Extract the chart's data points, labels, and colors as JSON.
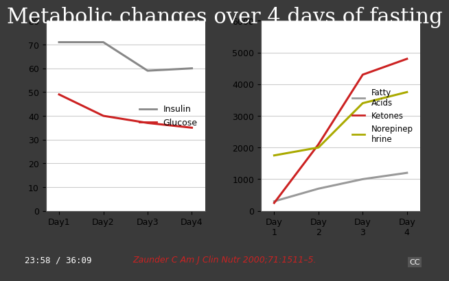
{
  "title": "Metabolic changes over 4 days of fasting",
  "title_fontsize": 22,
  "title_fontfamily": "serif",
  "background_color": "#3a3a3a",
  "chart_bg": "#ffffff",
  "left": {
    "x_labels": [
      "Day1",
      "Day2",
      "Day3",
      "Day4"
    ],
    "x": [
      1,
      2,
      3,
      4
    ],
    "insulin": [
      71,
      71,
      59,
      60
    ],
    "glucose": [
      49,
      40,
      37,
      35
    ],
    "insulin_color": "#888888",
    "glucose_color": "#cc2222",
    "ylim": [
      0,
      80
    ],
    "yticks": [
      0,
      10,
      20,
      30,
      40,
      50,
      60,
      70,
      80
    ],
    "legend_labels": [
      "Insulin",
      "Glucose"
    ]
  },
  "right": {
    "x_labels": [
      "Day\n1",
      "Day\n2",
      "Day\n3",
      "Day\n4"
    ],
    "x": [
      1,
      2,
      3,
      4
    ],
    "fatty_acids": [
      300,
      700,
      1000,
      1200
    ],
    "ketones": [
      250,
      2100,
      4300,
      4800
    ],
    "norepinephrine": [
      1750,
      2000,
      3400,
      3750
    ],
    "fatty_acids_color": "#999999",
    "ketones_color": "#cc2222",
    "norepinephrine_color": "#aaaa00",
    "ylim": [
      0,
      6000
    ],
    "yticks": [
      0,
      1000,
      2000,
      3000,
      4000,
      5000,
      6000
    ],
    "legend_labels": [
      "Fatty\nAcids",
      "Ketones",
      "Norepinep\nhrine"
    ]
  },
  "citation": "Zaunder C Am J Clin Nutr 2000;71:1511–5.",
  "citation_color": "#cc2222",
  "timecode": "23:58 / 36:09",
  "timecode_color": "#ffffff"
}
